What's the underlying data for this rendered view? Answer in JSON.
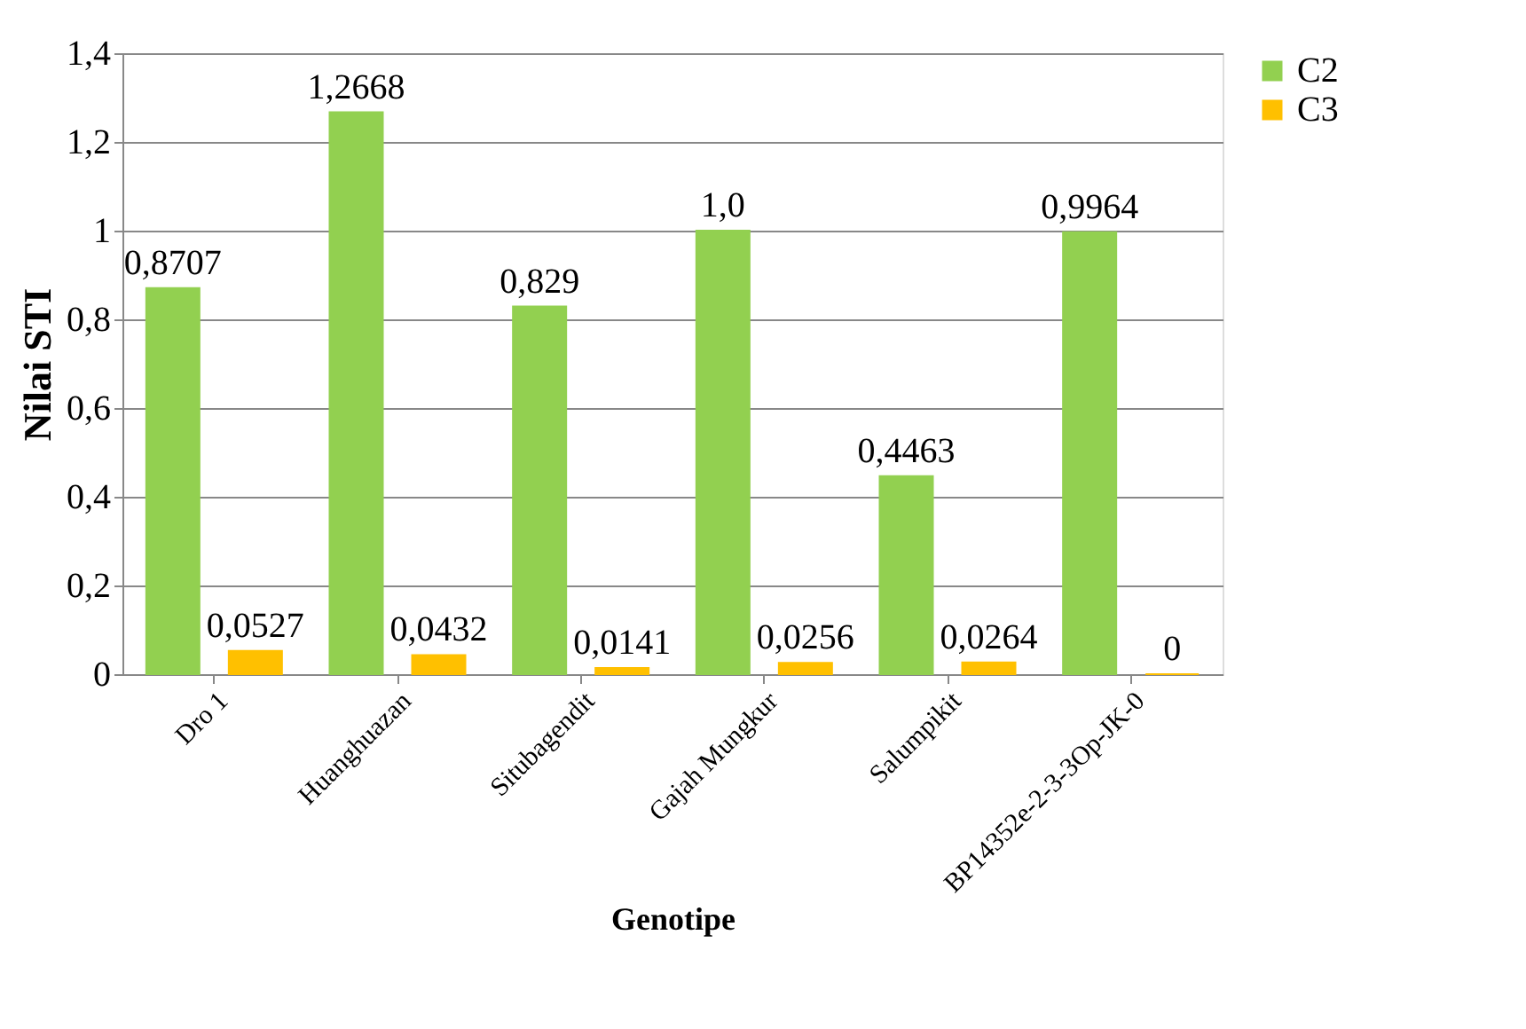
{
  "chart_data": {
    "type": "bar",
    "xlabel": "Genotipe",
    "ylabel": "Nilai STI",
    "categories": [
      "Dro 1",
      "Huanghuazan",
      "Situbagendit",
      "Gajah Mungkur",
      "Salumpikit",
      "BP14352e-2-3-3Op-JK-0"
    ],
    "series": [
      {
        "name": "C2",
        "color": "#92d050",
        "values": [
          0.8707,
          1.2668,
          0.829,
          1.0,
          0.4463,
          0.9964
        ],
        "value_labels": [
          "0,8707",
          "1,2668",
          "0,829",
          "1,0",
          "0,4463",
          "0,9964"
        ]
      },
      {
        "name": "C3",
        "color": "#ffc000",
        "values": [
          0.0527,
          0.0432,
          0.0141,
          0.0256,
          0.0264,
          0
        ],
        "value_labels": [
          "0,0527",
          "0,0432",
          "0,0141",
          "0,0256",
          "0,0264",
          "0"
        ]
      }
    ],
    "ylim": [
      0,
      1.4
    ],
    "yticks": [
      0,
      {
        "value": 0.2,
        "label": "0,2"
      },
      {
        "value": 0.4,
        "label": "0,4"
      },
      {
        "value": 0.6,
        "label": "0,6"
      },
      {
        "value": 0.8,
        "label": "0,8"
      },
      1,
      {
        "value": 1.2,
        "label": "1,2"
      },
      {
        "value": 1.4,
        "label": "1,4"
      }
    ],
    "grid": "y",
    "legend": "right"
  }
}
